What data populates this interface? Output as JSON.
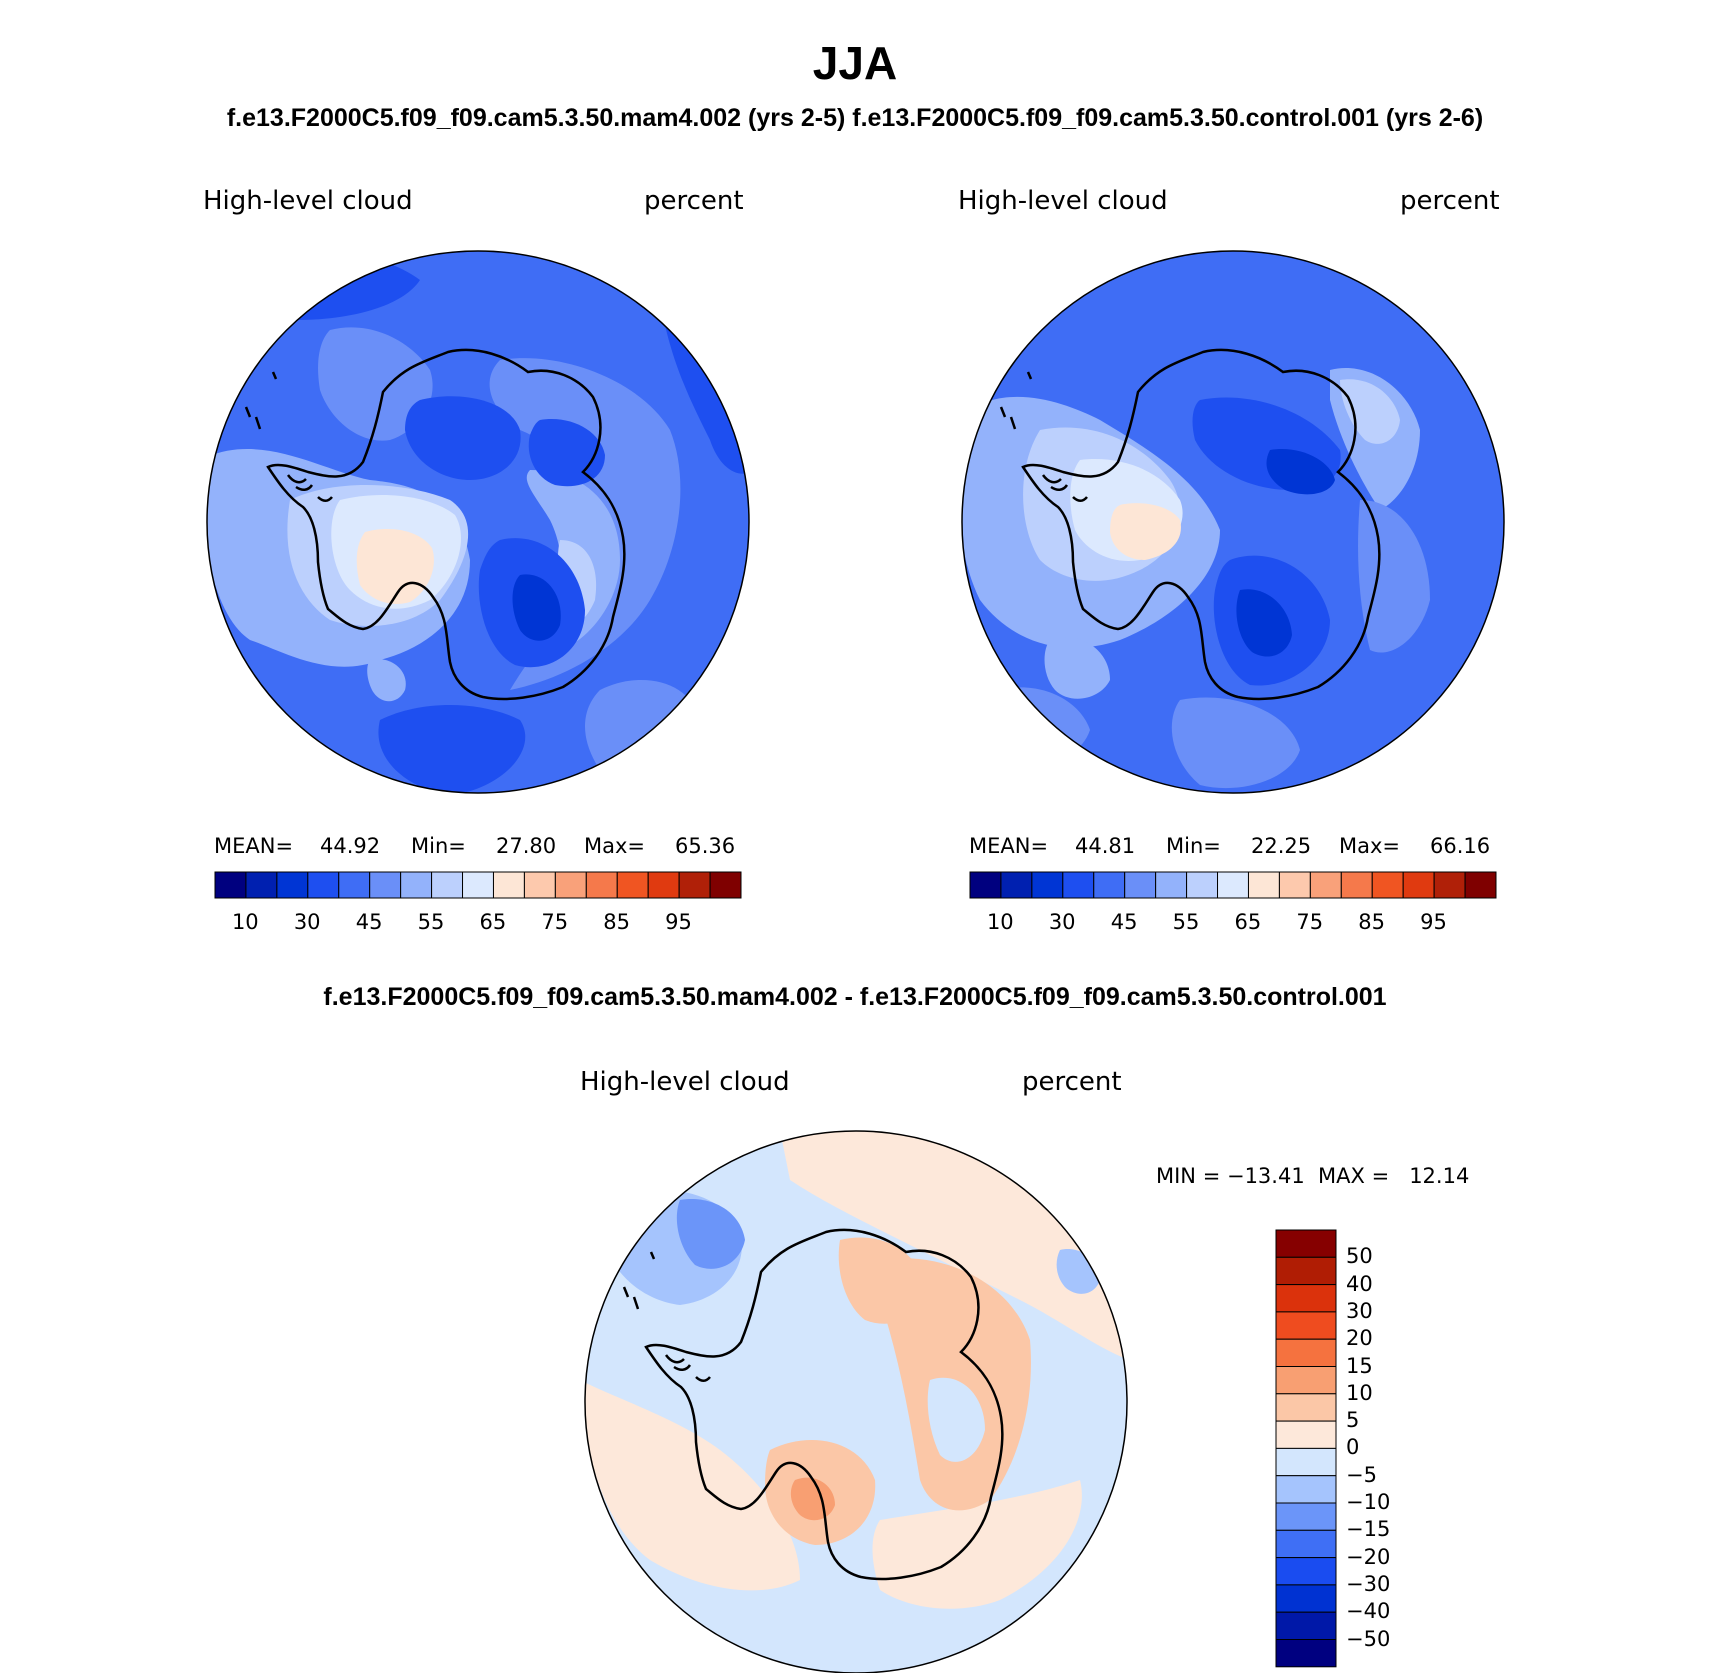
{
  "main_title": "JJA",
  "subtitle": "f.e13.F2000C5.f09_f09.cam5.3.50.mam4.002 (yrs 2-5) f.e13.F2000C5.f09_f09.cam5.3.50.control.001 (yrs 2-6)",
  "diff_title": "f.e13.F2000C5.f09_f09.cam5.3.50.mam4.002 - f.e13.F2000C5.f09_f09.cam5.3.50.control.001",
  "colors": {
    "abs_scale": [
      "#00007f",
      "#0020b0",
      "#0035d4",
      "#1e4ff0",
      "#3f6df5",
      "#6a8ff8",
      "#93b2fb",
      "#bcd0fd",
      "#dce9fe",
      "#fde6d6",
      "#fdc9ad",
      "#f9a17a",
      "#f5794b",
      "#f05522",
      "#e03a10",
      "#b02008",
      "#7f0000"
    ],
    "diff_scale": [
      "#000080",
      "#0018a8",
      "#0032d2",
      "#1a4cf0",
      "#3f6ff5",
      "#6b95f9",
      "#a5c4fd",
      "#d3e6fd",
      "#fde8da",
      "#fbc7a7",
      "#f89f72",
      "#f5723f",
      "#ef4c1f",
      "#db320c",
      "#b01d04",
      "#860000"
    ]
  },
  "map_left": {
    "variable": "High-level cloud",
    "units": "percent",
    "mean_label": "MEAN=",
    "mean": "44.92",
    "min_label": "Min=",
    "min": "27.80",
    "max_label": "Max=",
    "max": "65.36"
  },
  "map_right": {
    "variable": "High-level cloud",
    "units": "percent",
    "mean_label": "MEAN=",
    "mean": "44.81",
    "min_label": "Min=",
    "min": "22.25",
    "max_label": "Max=",
    "max": "66.16"
  },
  "map_diff": {
    "variable": "High-level cloud",
    "units": "percent",
    "minmax": "MIN = −13.41  MAX =   12.14"
  },
  "abs_tick_labels": [
    "10",
    "30",
    "45",
    "55",
    "65",
    "75",
    "85",
    "95"
  ],
  "diff_tick_labels": [
    "50",
    "40",
    "30",
    "20",
    "15",
    "10",
    "5",
    "0",
    "−5",
    "−10",
    "−15",
    "−20",
    "−30",
    "−40",
    "−50"
  ]
}
